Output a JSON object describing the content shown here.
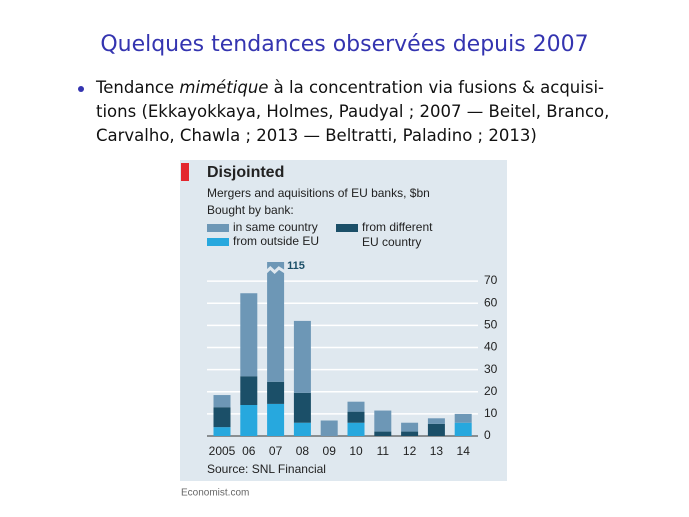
{
  "slide": {
    "title": "Quelques tendances observées depuis 2007",
    "bullet": [
      {
        "before": "Tendance ",
        "emphasis": "mimétique",
        "after": " à la concentration via fusions & acquisi-"
      },
      {
        "before": "tions (Ekkayokkaya, Holmes, Paudyal ; 2007 — Beitel, Branco,"
      },
      {
        "before": "Carvalho, Chawla ; 2013 — Beltratti, Paladino ; 2013)"
      }
    ]
  },
  "chart_data": {
    "type": "stacked-bar",
    "title": "Disjointed",
    "subtitle": "Mergers and aquisitions of EU banks, $bn",
    "legend_title": "Bought by bank:",
    "source": "Source: SNL Financial",
    "credit": "Economist.com",
    "categories": [
      "2005",
      "06",
      "07",
      "08",
      "09",
      "10",
      "11",
      "12",
      "13",
      "14"
    ],
    "series": [
      {
        "name": "from outside EU",
        "color": "#27a8de",
        "values": [
          4,
          14,
          14.5,
          6,
          0,
          6,
          0,
          0,
          0,
          6
        ]
      },
      {
        "name": "from different EU country",
        "color": "#1b4f68",
        "values": [
          9,
          13,
          10,
          13.5,
          0,
          5,
          2,
          2,
          5.5,
          0
        ]
      },
      {
        "name": "in same country",
        "color": "#6d97b6",
        "values": [
          5.5,
          37.5,
          90.5,
          32.5,
          7,
          4.5,
          9.5,
          4,
          2.5,
          4
        ]
      }
    ],
    "annotations": [
      {
        "category": "07",
        "value": 115
      }
    ],
    "ylim": [
      0,
      75
    ],
    "yticks": [
      0,
      10,
      20,
      30,
      40,
      50,
      60,
      70
    ],
    "grid": true,
    "axis_break": true
  }
}
